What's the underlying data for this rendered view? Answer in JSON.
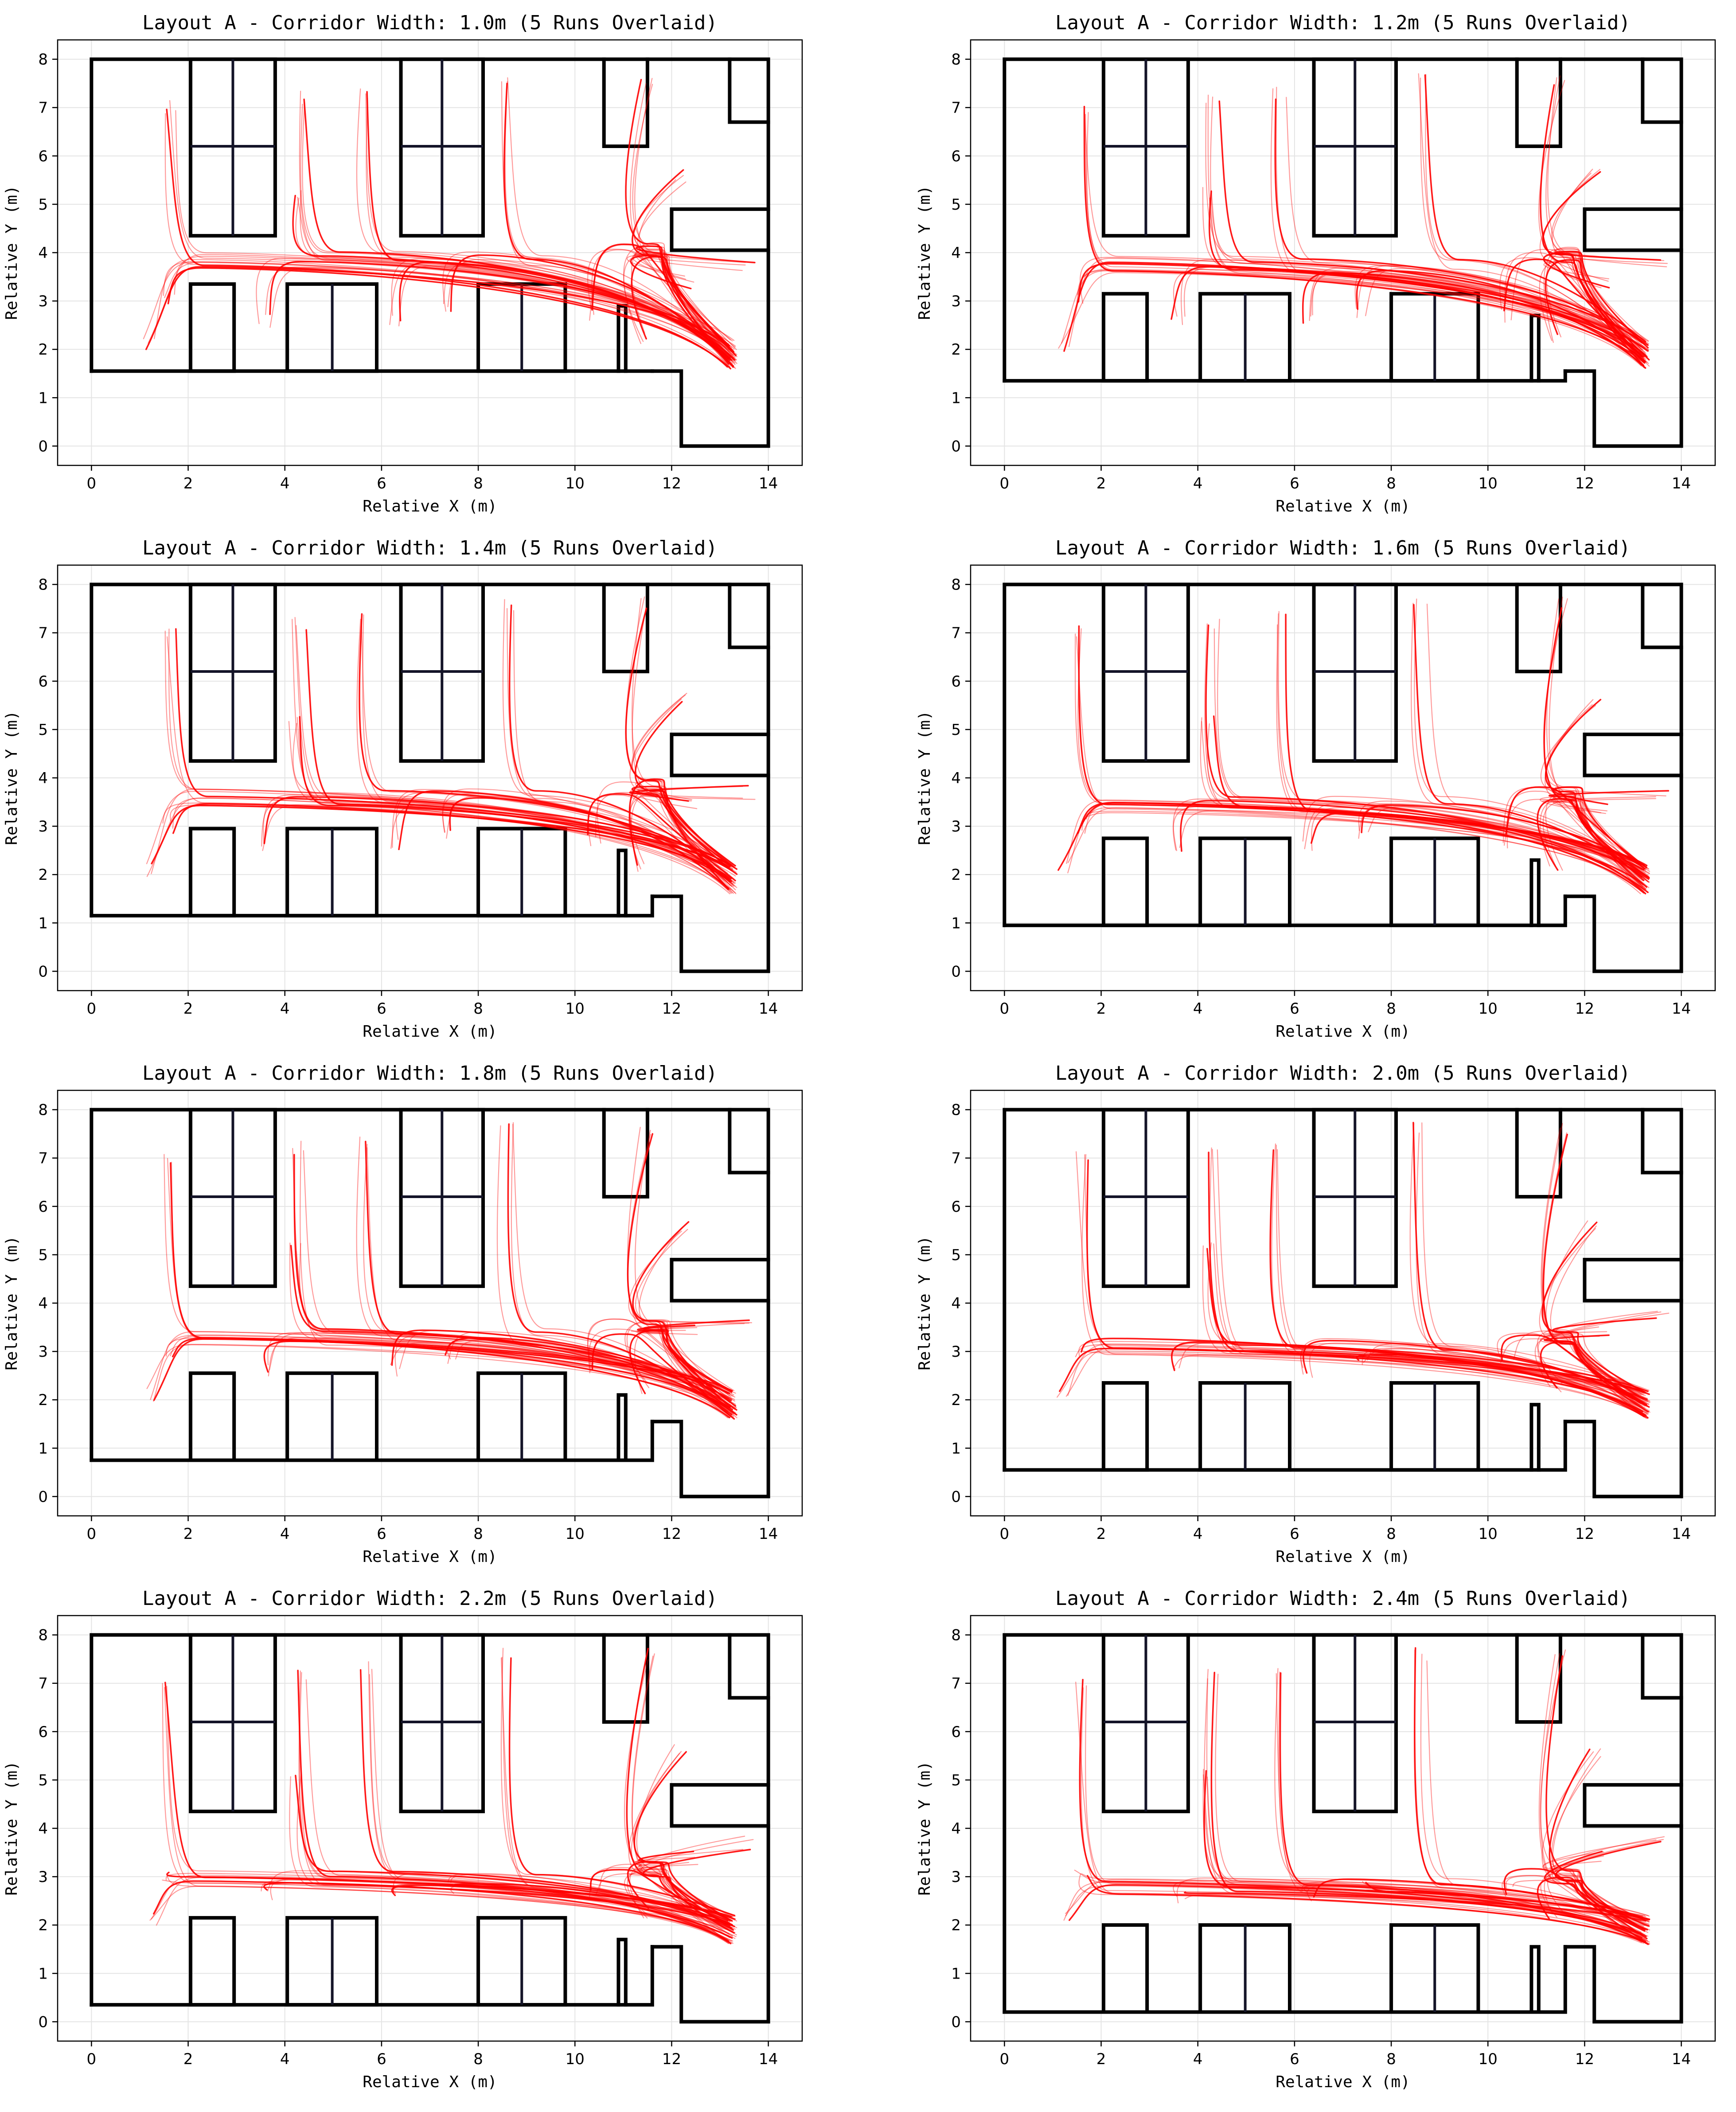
{
  "figure": {
    "background": "#ffffff"
  },
  "colors": {
    "trajectory": "#ff0000",
    "wall": "#000000",
    "grid": "#e4e4e4",
    "shelf_divider": "#141428"
  },
  "chart_data": [
    {
      "type": "line",
      "title": "Layout A - Corridor Width: 1.0m (5 Runs Overlaid)",
      "xlabel": "Relative X (m)",
      "ylabel": "Relative Y (m)",
      "xlim": [
        -0.7,
        14.7
      ],
      "ylim": [
        -0.4,
        8.4
      ],
      "xticks": [
        0,
        2,
        4,
        6,
        8,
        10,
        12,
        14
      ],
      "yticks": [
        0,
        1,
        2,
        3,
        4,
        5,
        6,
        7,
        8
      ],
      "grid": true,
      "corridor_width": 1.0,
      "corridor_y": 3.85,
      "floor_y": 1.55,
      "lower_top_y": 3.35,
      "runs": 5
    },
    {
      "type": "line",
      "title": "Layout A - Corridor Width: 1.2m (5 Runs Overlaid)",
      "xlabel": "Relative X (m)",
      "ylabel": "Relative Y (m)",
      "xlim": [
        -0.7,
        14.7
      ],
      "ylim": [
        -0.4,
        8.4
      ],
      "xticks": [
        0,
        2,
        4,
        6,
        8,
        10,
        12,
        14
      ],
      "yticks": [
        0,
        1,
        2,
        3,
        4,
        5,
        6,
        7,
        8
      ],
      "grid": true,
      "corridor_width": 1.2,
      "corridor_y": 3.75,
      "floor_y": 1.35,
      "lower_top_y": 3.15,
      "runs": 5
    },
    {
      "type": "line",
      "title": "Layout A - Corridor Width: 1.4m (5 Runs Overlaid)",
      "xlabel": "Relative X (m)",
      "ylabel": "Relative Y (m)",
      "xlim": [
        -0.7,
        14.7
      ],
      "ylim": [
        -0.4,
        8.4
      ],
      "xticks": [
        0,
        2,
        4,
        6,
        8,
        10,
        12,
        14
      ],
      "yticks": [
        0,
        1,
        2,
        3,
        4,
        5,
        6,
        7,
        8
      ],
      "grid": true,
      "corridor_width": 1.4,
      "corridor_y": 3.6,
      "floor_y": 1.15,
      "lower_top_y": 2.95,
      "runs": 5
    },
    {
      "type": "line",
      "title": "Layout A - Corridor Width: 1.6m (5 Runs Overlaid)",
      "xlabel": "Relative X (m)",
      "ylabel": "Relative Y (m)",
      "xlim": [
        -0.7,
        14.7
      ],
      "ylim": [
        -0.4,
        8.4
      ],
      "xticks": [
        0,
        2,
        4,
        6,
        8,
        10,
        12,
        14
      ],
      "yticks": [
        0,
        1,
        2,
        3,
        4,
        5,
        6,
        7,
        8
      ],
      "grid": true,
      "corridor_width": 1.6,
      "corridor_y": 3.45,
      "floor_y": 0.95,
      "lower_top_y": 2.75,
      "runs": 5
    },
    {
      "type": "line",
      "title": "Layout A - Corridor Width: 1.8m (5 Runs Overlaid)",
      "xlabel": "Relative X (m)",
      "ylabel": "Relative Y (m)",
      "xlim": [
        -0.7,
        14.7
      ],
      "ylim": [
        -0.4,
        8.4
      ],
      "xticks": [
        0,
        2,
        4,
        6,
        8,
        10,
        12,
        14
      ],
      "yticks": [
        0,
        1,
        2,
        3,
        4,
        5,
        6,
        7,
        8
      ],
      "grid": true,
      "corridor_width": 1.8,
      "corridor_y": 3.3,
      "floor_y": 0.75,
      "lower_top_y": 2.55,
      "runs": 5
    },
    {
      "type": "line",
      "title": "Layout A - Corridor Width: 2.0m (5 Runs Overlaid)",
      "xlabel": "Relative X (m)",
      "ylabel": "Relative Y (m)",
      "xlim": [
        -0.7,
        14.7
      ],
      "ylim": [
        -0.4,
        8.4
      ],
      "xticks": [
        0,
        2,
        4,
        6,
        8,
        10,
        12,
        14
      ],
      "yticks": [
        0,
        1,
        2,
        3,
        4,
        5,
        6,
        7,
        8
      ],
      "grid": true,
      "corridor_width": 2.0,
      "corridor_y": 3.1,
      "floor_y": 0.55,
      "lower_top_y": 2.35,
      "runs": 5
    },
    {
      "type": "line",
      "title": "Layout A - Corridor Width: 2.2m (5 Runs Overlaid)",
      "xlabel": "Relative X (m)",
      "ylabel": "Relative Y (m)",
      "xlim": [
        -0.7,
        14.7
      ],
      "ylim": [
        -0.4,
        8.4
      ],
      "xticks": [
        0,
        2,
        4,
        6,
        8,
        10,
        12,
        14
      ],
      "yticks": [
        0,
        1,
        2,
        3,
        4,
        5,
        6,
        7,
        8
      ],
      "grid": true,
      "corridor_width": 2.2,
      "corridor_y": 2.95,
      "floor_y": 0.35,
      "lower_top_y": 2.15,
      "runs": 5
    },
    {
      "type": "line",
      "title": "Layout A - Corridor Width: 2.4m (5 Runs Overlaid)",
      "xlabel": "Relative X (m)",
      "ylabel": "Relative Y (m)",
      "xlim": [
        -0.7,
        14.7
      ],
      "ylim": [
        -0.4,
        8.4
      ],
      "xticks": [
        0,
        2,
        4,
        6,
        8,
        10,
        12,
        14
      ],
      "yticks": [
        0,
        1,
        2,
        3,
        4,
        5,
        6,
        7,
        8
      ],
      "grid": true,
      "corridor_width": 2.4,
      "corridor_y": 2.8,
      "floor_y": 0.2,
      "lower_top_y": 2.0,
      "runs": 5
    }
  ]
}
